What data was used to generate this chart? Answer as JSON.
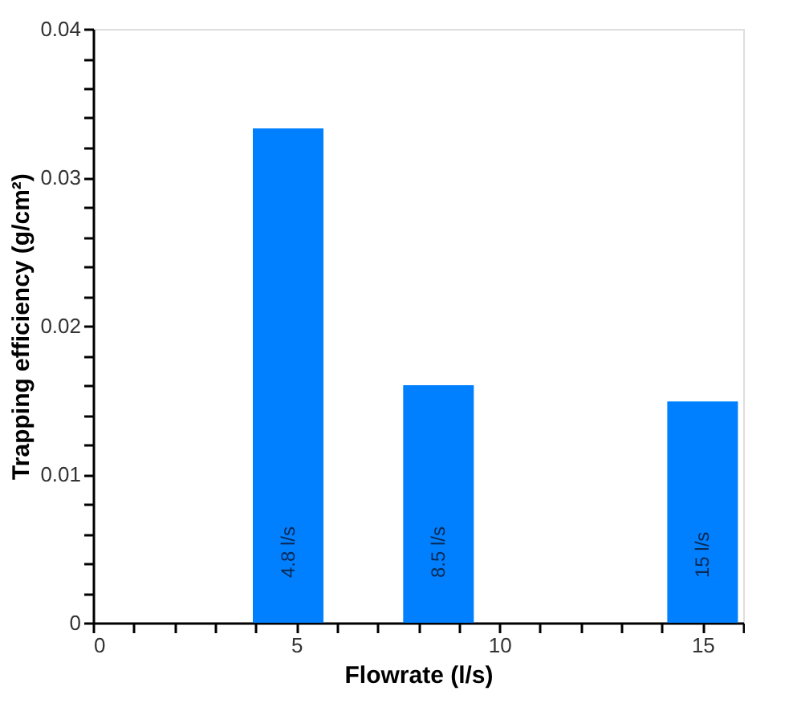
{
  "chart_data": {
    "type": "bar",
    "xlabel": "Flowrate (l/s)",
    "ylabel": "Trapping efficiency (g/cm²)",
    "x": [
      4.8,
      8.5,
      15
    ],
    "values": [
      0.0333,
      0.016,
      0.0149
    ],
    "color": "#0080ff",
    "xlim": [
      0,
      16
    ],
    "xticks": [
      0,
      {
        "value": 1,
        "label": null
      },
      {
        "value": 2,
        "label": null
      },
      {
        "value": 3,
        "label": null
      },
      {
        "value": 4,
        "label": null
      },
      5,
      {
        "value": 6,
        "label": null
      },
      {
        "value": 7,
        "label": null
      },
      {
        "value": 8,
        "label": null
      },
      {
        "value": 9,
        "label": null
      },
      10,
      {
        "value": 11,
        "label": null
      },
      {
        "value": 12,
        "label": null
      },
      {
        "value": 13,
        "label": null
      },
      {
        "value": 14,
        "label": null
      },
      15,
      {
        "value": 16,
        "label": null
      }
    ],
    "ylim": [
      0,
      0.04
    ],
    "yticks": [
      0,
      {
        "value": 0.002,
        "label": null
      },
      {
        "value": 0.004,
        "label": null
      },
      {
        "value": 0.006,
        "label": null
      },
      {
        "value": 0.008,
        "label": null
      },
      0.01,
      {
        "value": 0.012,
        "label": null
      },
      {
        "value": 0.014,
        "label": null
      },
      {
        "value": 0.016,
        "label": null
      },
      {
        "value": 0.018,
        "label": null
      },
      0.02,
      {
        "value": 0.022,
        "label": null
      },
      {
        "value": 0.024,
        "label": null
      },
      {
        "value": 0.026,
        "label": null
      },
      {
        "value": 0.028,
        "label": null
      },
      0.03,
      {
        "value": 0.032,
        "label": null
      },
      {
        "value": 0.034,
        "label": null
      },
      {
        "value": 0.036,
        "label": null
      },
      {
        "value": 0.038,
        "label": null
      },
      0.04
    ],
    "grid": false,
    "annotations": [
      {
        "text": "4.8 l/s",
        "x": 4.8,
        "y": 0
      },
      {
        "text": "8.5 l/s",
        "x": 8.5,
        "y": 0
      },
      {
        "text": "15 l/s",
        "x": 15,
        "y": 0
      }
    ]
  }
}
